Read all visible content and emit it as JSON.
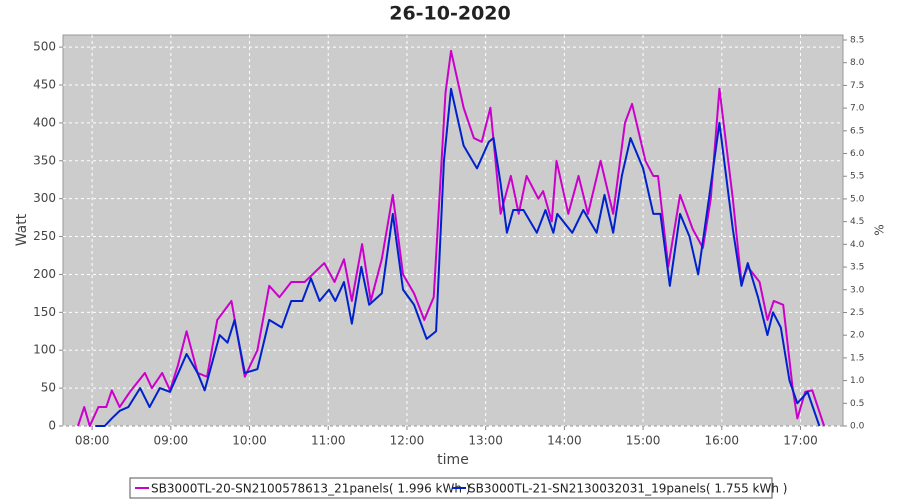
{
  "chart_data": {
    "type": "line",
    "title": "26-10-2020",
    "x_label": "time",
    "y_label": "Watt",
    "y2_label": "%",
    "xlim": [
      7.63,
      17.54
    ],
    "xticks": [
      {
        "value": 8,
        "label": "08:00"
      },
      {
        "value": 9,
        "label": "09:00"
      },
      {
        "value": 10,
        "label": "10:00"
      },
      {
        "value": 11,
        "label": "11:00"
      },
      {
        "value": 12,
        "label": "12:00"
      },
      {
        "value": 13,
        "label": "13:00"
      },
      {
        "value": 14,
        "label": "14:00"
      },
      {
        "value": 15,
        "label": "15:00"
      },
      {
        "value": 16,
        "label": "16:00"
      },
      {
        "value": 17,
        "label": "17:00"
      }
    ],
    "ylim": [
      0,
      516
    ],
    "yticks": [
      0,
      50,
      100,
      150,
      200,
      250,
      300,
      350,
      400,
      450,
      500
    ],
    "y2lim": [
      0,
      8.61
    ],
    "y2ticks": [
      {
        "value": 0,
        "label": "0.0"
      },
      0.5,
      {
        "value": 1,
        "label": "1.0"
      },
      1.5,
      {
        "value": 2,
        "label": "2.0"
      },
      2.5,
      {
        "value": 3,
        "label": "3.0"
      },
      3.5,
      {
        "value": 4,
        "label": "4.0"
      },
      4.5,
      {
        "value": 5,
        "label": "5.0"
      },
      5.5,
      {
        "value": 6,
        "label": "6.0"
      },
      6.5,
      {
        "value": 7,
        "label": "7.0"
      },
      7.5,
      {
        "value": 8,
        "label": "8.0"
      },
      8.5
    ],
    "grid": true,
    "legend": "bottom",
    "series": [
      {
        "name": "SB3000TL-20-SN2100578613_21panels( 1.996 kWh )",
        "color": "#cc00cc",
        "x": [
          7.82,
          7.9,
          7.97,
          8.08,
          8.18,
          8.25,
          8.35,
          8.48,
          8.67,
          8.76,
          8.89,
          8.99,
          9.09,
          9.2,
          9.34,
          9.46,
          9.59,
          9.77,
          9.94,
          10.1,
          10.25,
          10.38,
          10.53,
          10.7,
          10.95,
          11.08,
          11.2,
          11.3,
          11.43,
          11.54,
          11.68,
          11.82,
          11.95,
          12.09,
          12.22,
          12.34,
          12.49,
          12.56,
          12.72,
          12.85,
          12.95,
          13.06,
          13.19,
          13.32,
          13.42,
          13.52,
          13.67,
          13.73,
          13.84,
          13.9,
          14.05,
          14.18,
          14.3,
          14.46,
          14.62,
          14.77,
          14.86,
          15.03,
          15.13,
          15.19,
          15.32,
          15.47,
          15.63,
          15.76,
          15.86,
          15.97,
          16.14,
          16.25,
          16.33,
          16.48,
          16.58,
          16.66,
          16.78,
          16.9,
          16.96,
          17.06,
          17.15,
          17.3
        ],
        "values": [
          0,
          25,
          0,
          25,
          25,
          47,
          25,
          45,
          70,
          50,
          70,
          47,
          80,
          125,
          70,
          65,
          140,
          165,
          65,
          100,
          185,
          170,
          190,
          190,
          215,
          190,
          220,
          165,
          240,
          165,
          220,
          305,
          200,
          175,
          140,
          170,
          440,
          495,
          420,
          380,
          375,
          420,
          280,
          330,
          280,
          330,
          300,
          310,
          270,
          350,
          280,
          330,
          280,
          350,
          280,
          400,
          425,
          350,
          330,
          330,
          210,
          305,
          260,
          235,
          300,
          445,
          300,
          190,
          210,
          190,
          140,
          165,
          160,
          50,
          10,
          45,
          47,
          0
        ]
      },
      {
        "name": "SB3000TL-21-SN2130032031_19panels( 1.755 kWh )",
        "color": "#0022cc",
        "x": [
          8.04,
          8.16,
          8.25,
          8.35,
          8.46,
          8.61,
          8.73,
          8.86,
          8.99,
          9.2,
          9.34,
          9.43,
          9.62,
          9.72,
          9.81,
          9.94,
          10.1,
          10.25,
          10.41,
          10.53,
          10.67,
          10.78,
          10.89,
          11.01,
          11.09,
          11.2,
          11.3,
          11.42,
          11.52,
          11.68,
          11.82,
          11.95,
          12.09,
          12.25,
          12.37,
          12.47,
          12.56,
          12.72,
          12.89,
          13.04,
          13.1,
          13.19,
          13.27,
          13.35,
          13.48,
          13.65,
          13.76,
          13.86,
          13.91,
          14.1,
          14.24,
          14.41,
          14.51,
          14.62,
          14.73,
          14.84,
          15.0,
          15.13,
          15.22,
          15.34,
          15.47,
          15.59,
          15.7,
          15.85,
          15.97,
          16.14,
          16.25,
          16.33,
          16.46,
          16.58,
          16.65,
          16.75,
          16.86,
          16.96,
          17.09,
          17.24
        ],
        "values": [
          0,
          0,
          10,
          20,
          25,
          50,
          25,
          50,
          45,
          95,
          70,
          47,
          120,
          110,
          140,
          70,
          75,
          140,
          130,
          165,
          165,
          195,
          165,
          180,
          165,
          190,
          135,
          210,
          160,
          175,
          280,
          180,
          160,
          115,
          125,
          350,
          445,
          370,
          340,
          375,
          380,
          320,
          255,
          285,
          285,
          255,
          285,
          255,
          280,
          255,
          285,
          255,
          305,
          255,
          330,
          380,
          340,
          280,
          280,
          185,
          280,
          250,
          200,
          310,
          400,
          260,
          185,
          215,
          170,
          120,
          150,
          130,
          60,
          30,
          45,
          0
        ]
      }
    ]
  }
}
